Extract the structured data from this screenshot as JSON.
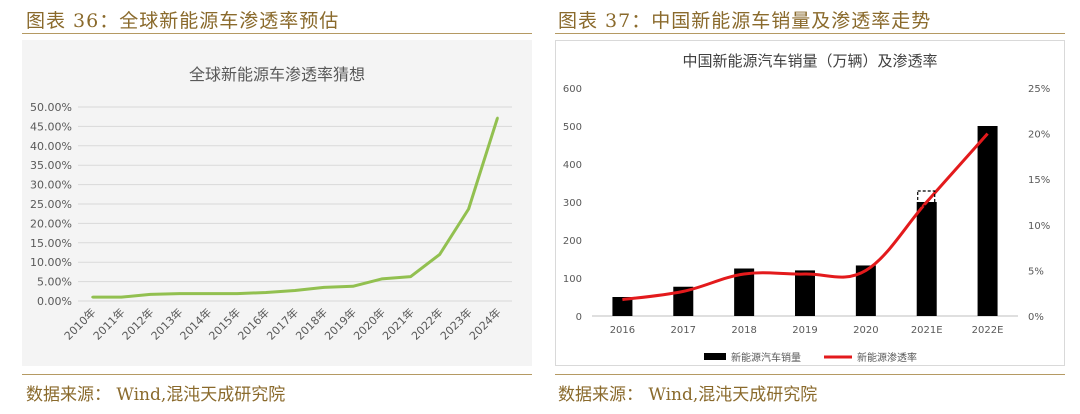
{
  "left": {
    "fig_title": "图表 36：全球新能源车渗透率预估",
    "source": "数据来源： Wind,混沌天成研究院"
  },
  "right": {
    "fig_title": "图表 37：中国新能源车销量及渗透率走势",
    "source": "数据来源： Wind,混沌天成研究院"
  },
  "colors": {
    "accent": "#8a6a2c",
    "line_green": "#92c050",
    "line_red": "#e31a1c",
    "bar_black": "#000000"
  },
  "chart_data": [
    {
      "type": "line",
      "title": "全球新能源车渗透率猜想",
      "categories": [
        "2010年",
        "2011年",
        "2012年",
        "2013年",
        "2014年",
        "2015年",
        "2016年",
        "2017年",
        "2018年",
        "2019年",
        "2020年",
        "2021年",
        "2022年",
        "2023年",
        "2024年"
      ],
      "series": [
        {
          "values": [
            1.0,
            1.0,
            1.7,
            1.9,
            1.9,
            1.9,
            2.2,
            2.7,
            3.5,
            3.8,
            5.7,
            6.3,
            12.0,
            23.7,
            47.2
          ]
        }
      ],
      "ylim": [
        0,
        50
      ],
      "y_ticks": [
        "0.00%",
        "5.00%",
        "10.00%",
        "15.00%",
        "20.00%",
        "25.00%",
        "30.00%",
        "35.00%",
        "40.00%",
        "45.00%",
        "50.00%"
      ],
      "grid": true
    },
    {
      "type": "bar+line",
      "title": "中国新能源汽车销量（万辆）及渗透率",
      "categories": [
        "2016",
        "2017",
        "2018",
        "2019",
        "2020",
        "2021E",
        "2022E"
      ],
      "series": [
        {
          "name": "新能源汽车销量",
          "type": "bar",
          "axis": "left",
          "values": [
            50,
            77,
            125,
            120,
            133,
            300,
            500
          ]
        },
        {
          "name": "新能源渗透率",
          "type": "line",
          "axis": "right",
          "values": [
            1.8,
            2.7,
            4.6,
            4.6,
            5.0,
            12.5,
            20.0
          ]
        }
      ],
      "ylim_left": [
        0,
        600
      ],
      "y_ticks_left": [
        "0",
        "100",
        "200",
        "300",
        "400",
        "500",
        "600"
      ],
      "ylim_right": [
        0,
        25
      ],
      "y_ticks_right": [
        "0%",
        "5%",
        "10%",
        "15%",
        "20%",
        "25%"
      ],
      "legend": "bottom"
    }
  ]
}
